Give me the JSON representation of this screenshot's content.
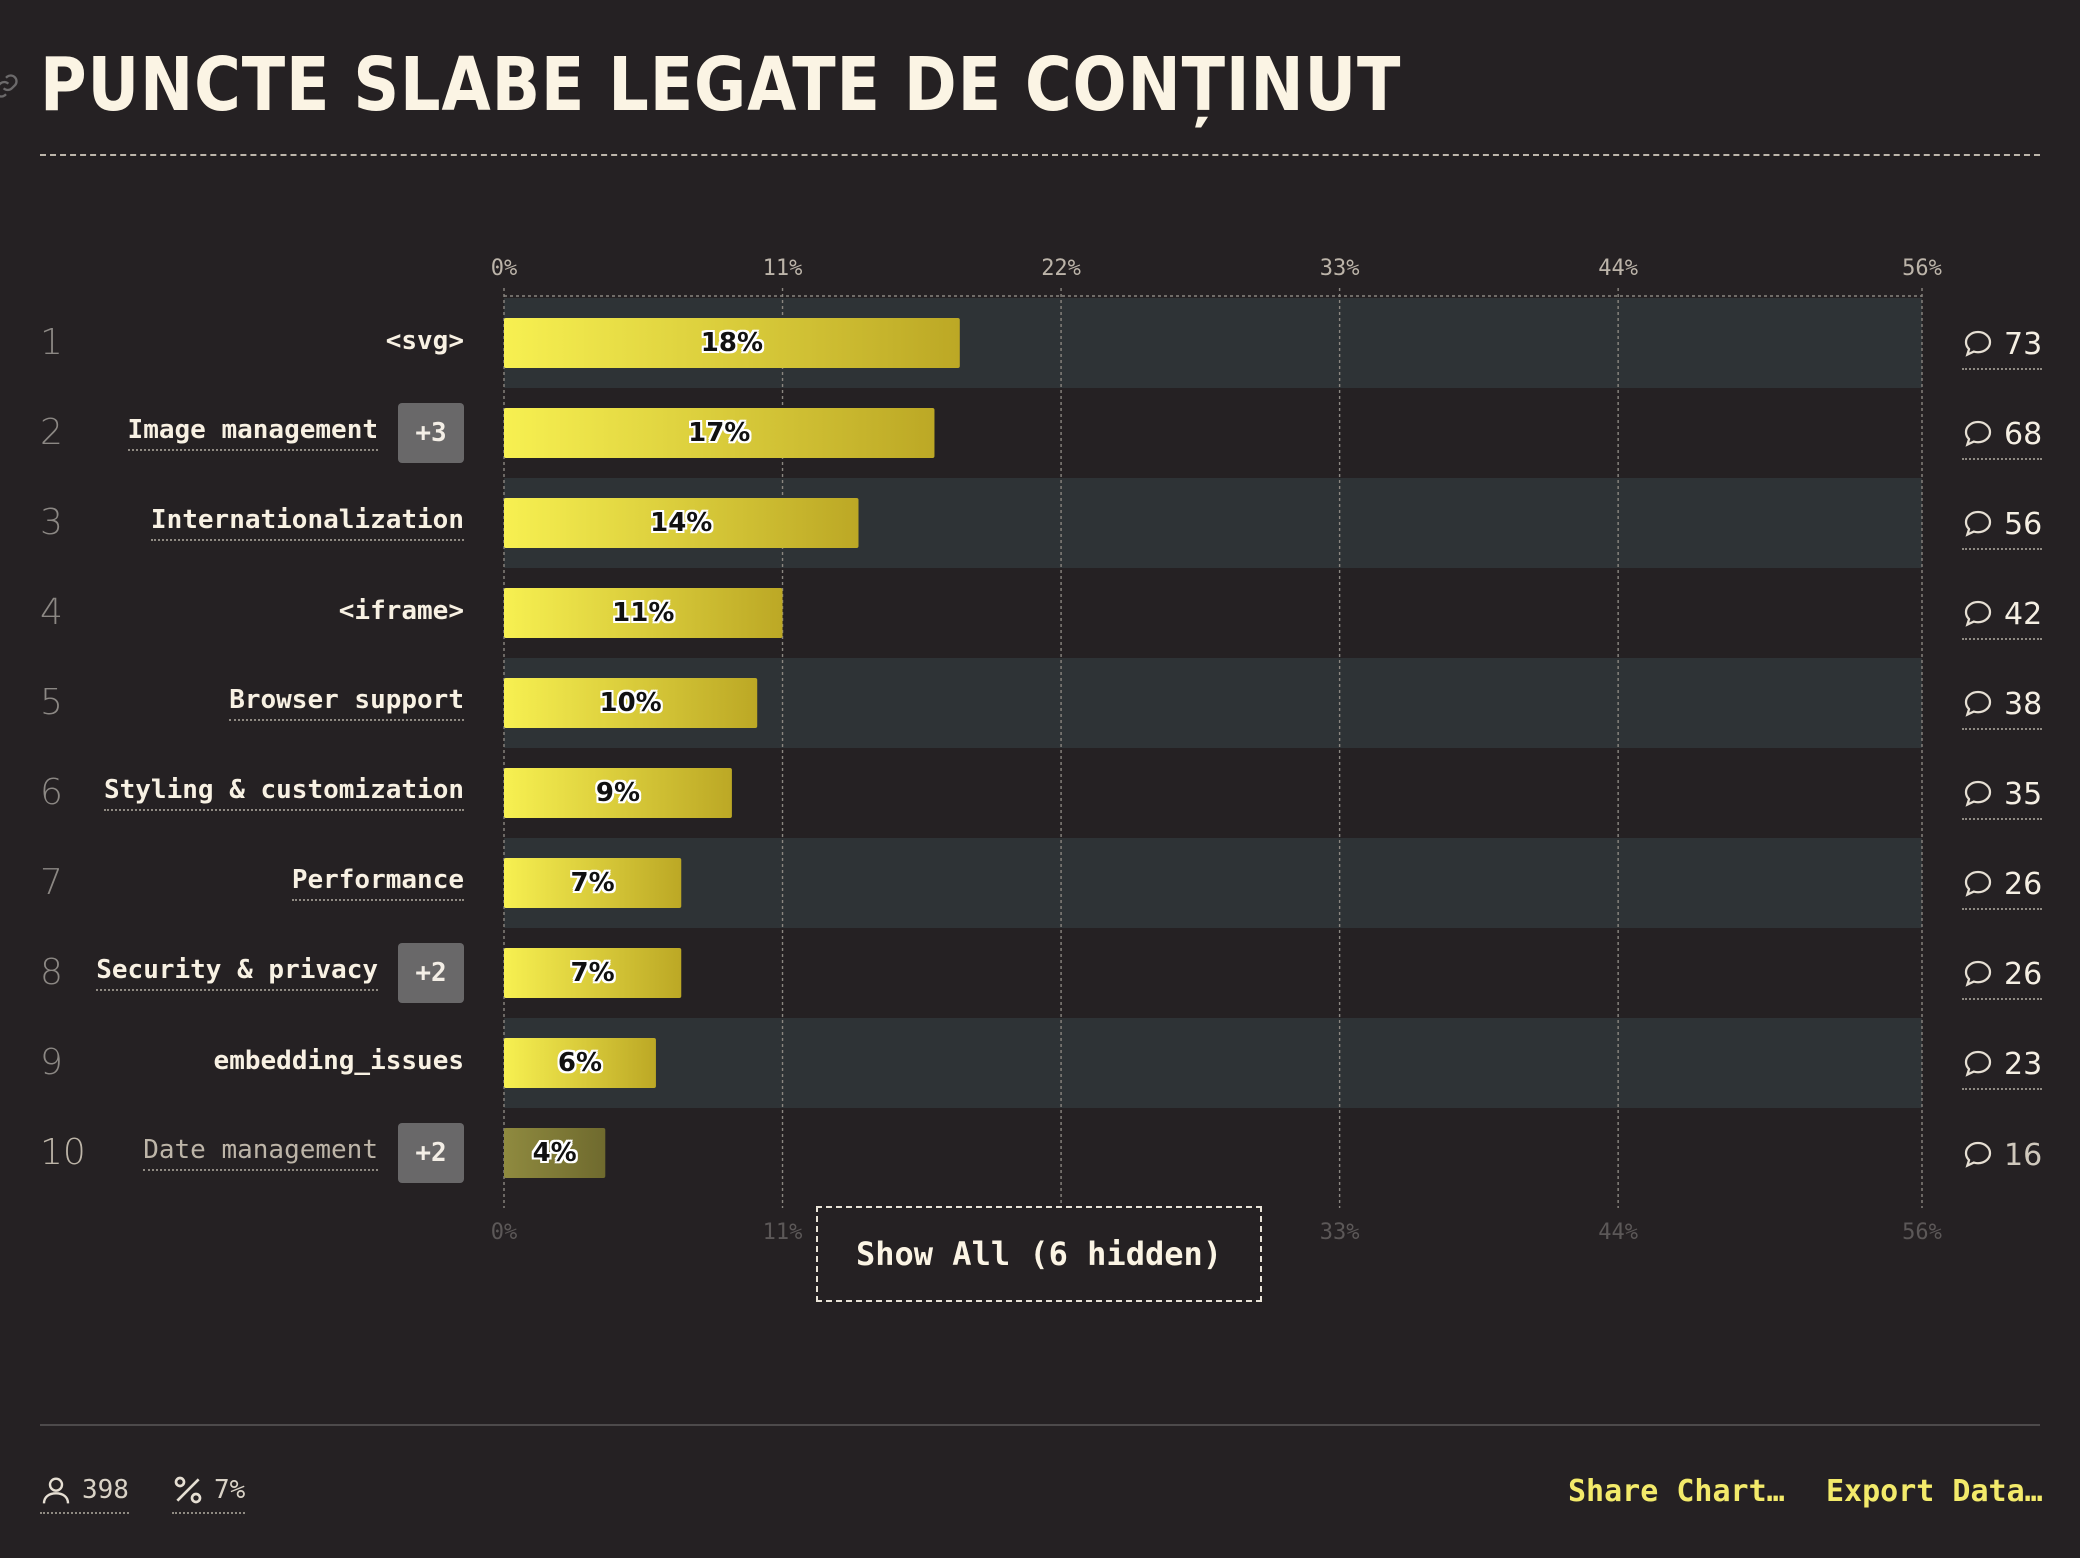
{
  "title": "PUNCTE SLABE LEGATE DE CONȚINUT",
  "icons": {
    "link": "link-icon",
    "comment": "comment-icon",
    "user": "user-icon",
    "percent": "percent-icon"
  },
  "colors": {
    "bar_start": "#f7f051",
    "bar_end": "#bca825",
    "band": "#2e3336",
    "background": "#252123",
    "link": "#f3ea6a"
  },
  "chart_data": {
    "type": "bar",
    "orientation": "horizontal",
    "xlim": [
      0,
      56
    ],
    "ticks": [
      "0%",
      "11%",
      "22%",
      "33%",
      "44%",
      "56%"
    ],
    "tick_values": [
      0,
      11,
      22,
      33,
      44,
      56
    ],
    "grid": true,
    "rows": [
      {
        "rank": "1",
        "label": "<svg>",
        "value": 18,
        "value_label": "18%",
        "count": "73",
        "badge": "",
        "underline": false
      },
      {
        "rank": "2",
        "label": "Image management",
        "value": 17,
        "value_label": "17%",
        "count": "68",
        "badge": "+3",
        "underline": true
      },
      {
        "rank": "3",
        "label": "Internationalization",
        "value": 14,
        "value_label": "14%",
        "count": "56",
        "badge": "",
        "underline": true
      },
      {
        "rank": "4",
        "label": "<iframe>",
        "value": 11,
        "value_label": "11%",
        "count": "42",
        "badge": "",
        "underline": false
      },
      {
        "rank": "5",
        "label": "Browser support",
        "value": 10,
        "value_label": "10%",
        "count": "38",
        "badge": "",
        "underline": true
      },
      {
        "rank": "6",
        "label": "Styling & customization",
        "value": 9,
        "value_label": "9%",
        "count": "35",
        "badge": "",
        "underline": true
      },
      {
        "rank": "7",
        "label": "Performance",
        "value": 7,
        "value_label": "7%",
        "count": "26",
        "badge": "",
        "underline": true
      },
      {
        "rank": "8",
        "label": "Security & privacy",
        "value": 7,
        "value_label": "7%",
        "count": "26",
        "badge": "+2",
        "underline": true
      },
      {
        "rank": "9",
        "label": "embedding_issues",
        "value": 6,
        "value_label": "6%",
        "count": "23",
        "badge": "",
        "underline": false
      },
      {
        "rank": "10",
        "label": "Date management",
        "value": 4,
        "value_label": "4%",
        "count": "16",
        "badge": "+2",
        "underline": true,
        "dim": true
      }
    ]
  },
  "show_all_label": "Show All (6 hidden)",
  "footer": {
    "respondents": "398",
    "percent": "7%",
    "share_label": "Share Chart…",
    "export_label": "Export Data…"
  }
}
